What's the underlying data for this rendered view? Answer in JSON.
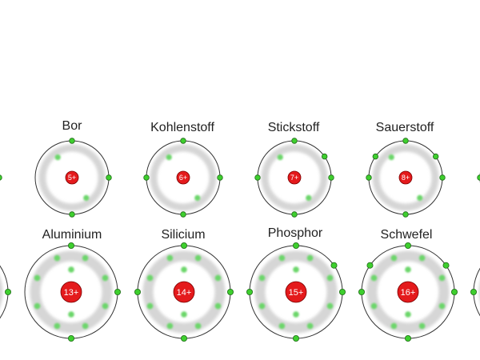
{
  "colors": {
    "nucleus": "#e41a1c",
    "nucleus_stroke": "#7a0000",
    "nucleus_text": "#ffffff",
    "electron": "#3ecf2e",
    "electron_stroke": "#1f6b17",
    "inner_electron": "#6cd66a",
    "orbit": "#333333",
    "shadow_ring": "#d6d6d6"
  },
  "atoms": [
    {
      "id": "bor",
      "name": "Bor",
      "charge": "5+",
      "inner_electrons": 2,
      "outer_electrons": 3,
      "size": "small",
      "show_label": true
    },
    {
      "id": "kohlenstoff",
      "name": "Kohlenstoff",
      "charge": "6+",
      "inner_electrons": 2,
      "outer_electrons": 4,
      "size": "small",
      "show_label": true
    },
    {
      "id": "stickstoff",
      "name": "Stickstoff",
      "charge": "7+",
      "inner_electrons": 2,
      "outer_electrons": 5,
      "size": "small",
      "show_label": true
    },
    {
      "id": "sauerstoff",
      "name": "Sauerstoff",
      "charge": "8+",
      "inner_electrons": 2,
      "outer_electrons": 6,
      "size": "small",
      "show_label": true
    },
    {
      "id": "aluminium",
      "name": "Aluminium",
      "charge": "13+",
      "inner_electrons": 10,
      "outer_electrons": 3,
      "size": "large",
      "show_label": true
    },
    {
      "id": "silicium",
      "name": "Silicium",
      "charge": "14+",
      "inner_electrons": 10,
      "outer_electrons": 4,
      "size": "large",
      "show_label": true
    },
    {
      "id": "phosphor",
      "name": "Phosphor",
      "charge": "15+",
      "inner_electrons": 10,
      "outer_electrons": 5,
      "size": "large",
      "show_label": true
    },
    {
      "id": "schwefel",
      "name": "Schwefel",
      "charge": "16+",
      "inner_electrons": 10,
      "outer_electrons": 6,
      "size": "large",
      "show_label": true
    },
    {
      "id": "partial-left-top",
      "name": "",
      "charge": "",
      "inner_electrons": 0,
      "outer_electrons": 1,
      "size": "small",
      "show_label": false
    },
    {
      "id": "partial-left-bottom",
      "name": "",
      "charge": "",
      "inner_electrons": 0,
      "outer_electrons": 1,
      "size": "large",
      "show_label": false
    },
    {
      "id": "partial-right-top",
      "name": "",
      "charge": "",
      "inner_electrons": 0,
      "outer_electrons": 1,
      "size": "small",
      "show_label": false
    },
    {
      "id": "partial-right-bottom",
      "name": "",
      "charge": "",
      "inner_electrons": 0,
      "outer_electrons": 1,
      "size": "large",
      "show_label": false
    }
  ]
}
